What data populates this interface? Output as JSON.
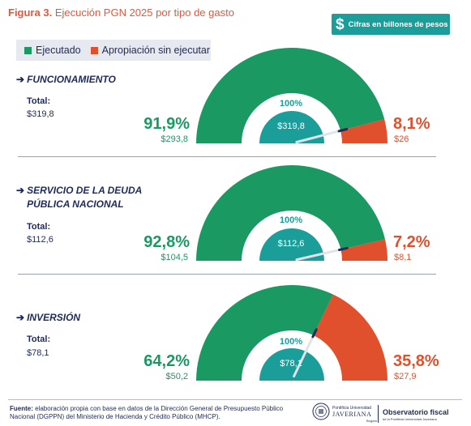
{
  "figure": {
    "label": "Figura 3.",
    "title": "Ejecución PGN 2025 por tipo de gasto"
  },
  "units_badge": {
    "symbol": "$",
    "text": "Cifras en billones de pesos"
  },
  "legend": {
    "items": [
      {
        "label": "Ejecutado",
        "color": "#1a9a62"
      },
      {
        "label": "Apropiación sin ejecutar",
        "color": "#e0502c"
      }
    ]
  },
  "colors": {
    "executed": "#1a9a62",
    "unexecuted": "#e0502c",
    "center": "#1b9e9a",
    "needle": "#1e2a5a"
  },
  "chart_data": [
    {
      "type": "gauge",
      "title": "FUNCIONAMIENTO",
      "total_label": "Total:",
      "total_value": "$319,8",
      "center_pct": "100%",
      "center_value": "$319,8",
      "executed": {
        "percent": 91.9,
        "percent_label": "91,9%",
        "amount_label": "$293,8"
      },
      "unexecuted": {
        "percent": 8.1,
        "percent_label": "8,1%",
        "amount_label": "$26"
      }
    },
    {
      "type": "gauge",
      "title": "SERVICIO DE LA DEUDA PÚBLICA NACIONAL",
      "total_label": "Total:",
      "total_value": "$112,6",
      "center_pct": "100%",
      "center_value": "$112,6",
      "executed": {
        "percent": 92.8,
        "percent_label": "92,8%",
        "amount_label": "$104,5"
      },
      "unexecuted": {
        "percent": 7.2,
        "percent_label": "7,2%",
        "amount_label": "$8,1"
      }
    },
    {
      "type": "gauge",
      "title": "INVERSIÓN",
      "total_label": "Total:",
      "total_value": "$78,1",
      "center_pct": "100%",
      "center_value": "$78,1",
      "executed": {
        "percent": 64.2,
        "percent_label": "64,2%",
        "amount_label": "$50,2"
      },
      "unexecuted": {
        "percent": 35.8,
        "percent_label": "35,8%",
        "amount_label": "$27,9"
      }
    }
  ],
  "source": {
    "label": "Fuente:",
    "text": "elaboración propia con base en datos de la Dirección General de Presupuesto Público Nacional (DGPPN) del Ministerio de Hacienda y Crédito Público (MHCP)."
  },
  "logos": {
    "javeriana_top": "Pontificia Universidad",
    "javeriana_name": "JAVERIANA",
    "javeriana_city": "Bogotá",
    "observatorio_name": "Observatorio fiscal",
    "observatorio_sub": "de la Pontificia Universidad Javeriana"
  }
}
